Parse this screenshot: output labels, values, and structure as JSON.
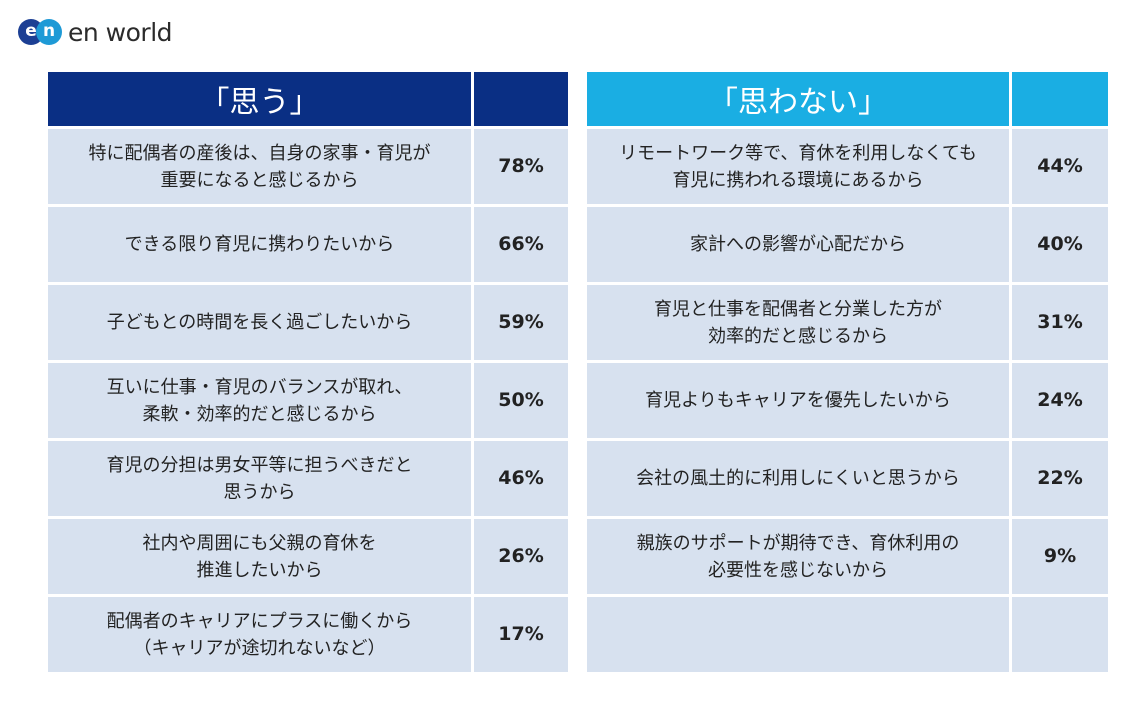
{
  "brand": {
    "mark_left": "e",
    "mark_right": "n",
    "name": "en world"
  },
  "left": {
    "header": "「思う」",
    "rows": [
      {
        "reason": "特に配偶者の産後は、自身の家事・育児が\n重要になると感じるから",
        "pct": "78%"
      },
      {
        "reason": "できる限り育児に携わりたいから",
        "pct": "66%"
      },
      {
        "reason": "子どもとの時間を長く過ごしたいから",
        "pct": "59%"
      },
      {
        "reason": "互いに仕事・育児のバランスが取れ、\n柔軟・効率的だと感じるから",
        "pct": "50%"
      },
      {
        "reason": "育児の分担は男女平等に担うべきだと\n思うから",
        "pct": "46%"
      },
      {
        "reason": "社内や周囲にも父親の育休を\n推進したいから",
        "pct": "26%"
      },
      {
        "reason": "配偶者のキャリアにプラスに働くから\n（キャリアが途切れないなど）",
        "pct": "17%"
      }
    ]
  },
  "right": {
    "header": "「思わない」",
    "rows": [
      {
        "reason": "リモートワーク等で、育休を利用しなくても\n育児に携われる環境にあるから",
        "pct": "44%"
      },
      {
        "reason": "家計への影響が心配だから",
        "pct": "40%"
      },
      {
        "reason": "育児と仕事を配偶者と分業した方が\n効率的だと感じるから",
        "pct": "31%"
      },
      {
        "reason": "育児よりもキャリアを優先したいから",
        "pct": "24%"
      },
      {
        "reason": "会社の風土的に利用しにくいと思うから",
        "pct": "22%"
      },
      {
        "reason": "親族のサポートが期待でき、育休利用の\n必要性を感じないから",
        "pct": "9%"
      },
      {
        "reason": "",
        "pct": ""
      }
    ]
  },
  "colors": {
    "left_header": "#0a2f84",
    "right_header": "#1aaee3",
    "cell": "#d7e1ef"
  }
}
